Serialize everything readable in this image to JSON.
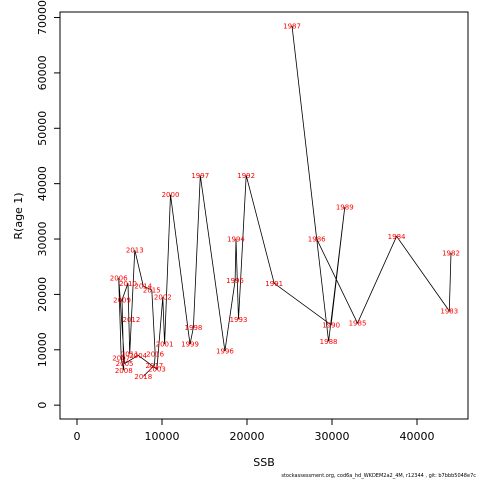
{
  "chart_data": {
    "type": "line",
    "xlabel": "SSB",
    "ylabel": "R(age 1)",
    "xlim": [
      -2000,
      46000
    ],
    "ylim": [
      -2500,
      71000
    ],
    "x_ticks": [
      0,
      10000,
      20000,
      30000,
      40000
    ],
    "x_tick_labels": [
      "0",
      "10000",
      "20000",
      "30000",
      "40000"
    ],
    "y_ticks": [
      0,
      10000,
      20000,
      30000,
      40000,
      50000,
      60000,
      70000
    ],
    "y_tick_labels": [
      "0",
      "10000",
      "20000",
      "30000",
      "40000",
      "50000",
      "60000",
      "70000"
    ],
    "line_color": "#000000",
    "label_color": "#ff0000",
    "points": [
      {
        "year": "1982",
        "x": 44000,
        "y": 27500
      },
      {
        "year": "1983",
        "x": 43800,
        "y": 17000
      },
      {
        "year": "1984",
        "x": 37600,
        "y": 30500
      },
      {
        "year": "1985",
        "x": 33000,
        "y": 14800
      },
      {
        "year": "1986",
        "x": 28200,
        "y": 30000
      },
      {
        "year": "1987",
        "x": 25300,
        "y": 68500
      },
      {
        "year": "1988",
        "x": 29600,
        "y": 11500
      },
      {
        "year": "1989",
        "x": 31500,
        "y": 35800
      },
      {
        "year": "1990",
        "x": 29900,
        "y": 14500
      },
      {
        "year": "1991",
        "x": 23200,
        "y": 22000
      },
      {
        "year": "1992",
        "x": 19900,
        "y": 41500
      },
      {
        "year": "1993",
        "x": 19000,
        "y": 15500
      },
      {
        "year": "1994",
        "x": 18700,
        "y": 30000
      },
      {
        "year": "1995",
        "x": 18600,
        "y": 22500
      },
      {
        "year": "1996",
        "x": 17400,
        "y": 9800
      },
      {
        "year": "1997",
        "x": 14500,
        "y": 41500
      },
      {
        "year": "1998",
        "x": 13700,
        "y": 14000
      },
      {
        "year": "1999",
        "x": 13300,
        "y": 11000
      },
      {
        "year": "2000",
        "x": 11000,
        "y": 38000
      },
      {
        "year": "2001",
        "x": 10300,
        "y": 11000
      },
      {
        "year": "2002",
        "x": 10100,
        "y": 19500
      },
      {
        "year": "2003",
        "x": 9400,
        "y": 6500
      },
      {
        "year": "2004",
        "x": 7200,
        "y": 9000
      },
      {
        "year": "2005",
        "x": 5600,
        "y": 7500
      },
      {
        "year": "2006",
        "x": 4900,
        "y": 23000
      },
      {
        "year": "2007",
        "x": 5200,
        "y": 8500
      },
      {
        "year": "2008",
        "x": 5500,
        "y": 6300
      },
      {
        "year": "2009",
        "x": 5300,
        "y": 19000
      },
      {
        "year": "2010",
        "x": 6000,
        "y": 22000
      },
      {
        "year": "2011",
        "x": 6200,
        "y": 9200
      },
      {
        "year": "2012",
        "x": 6400,
        "y": 15500
      },
      {
        "year": "2013",
        "x": 6800,
        "y": 28000
      },
      {
        "year": "2014",
        "x": 7800,
        "y": 21500
      },
      {
        "year": "2015",
        "x": 8800,
        "y": 20800
      },
      {
        "year": "2016",
        "x": 9200,
        "y": 9200
      },
      {
        "year": "2017",
        "x": 9100,
        "y": 7200
      },
      {
        "year": "2018",
        "x": 7800,
        "y": 5200
      }
    ]
  },
  "footer": "stockassessment.org, cod6a_hd_WKDEM2a2_4M, r12344 , git: b7bbb5048e7c"
}
